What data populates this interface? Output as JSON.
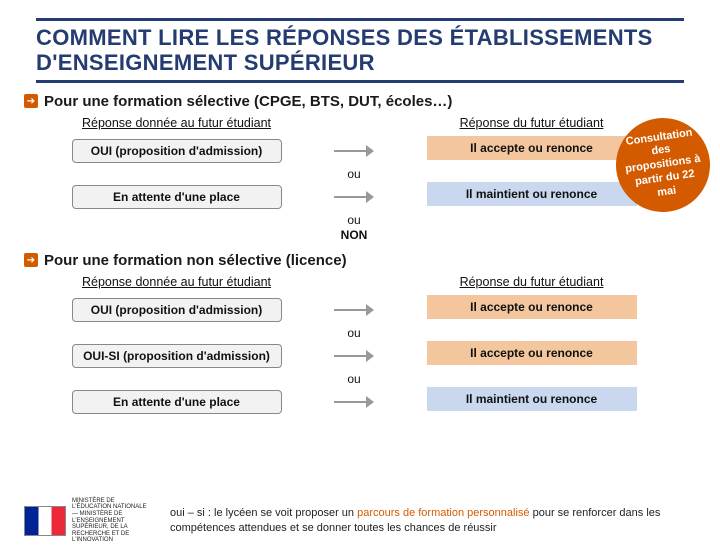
{
  "title": "COMMENT LIRE LES RÉPONSES DES ÉTABLISSEMENTS D'ENSEIGNEMENT SUPÉRIEUR",
  "badge": "Consultation des propositions à partir du 22 mai",
  "sections": [
    {
      "heading": "Pour une formation sélective (CPGE, BTS, DUT, écoles…)",
      "left_header": "Réponse donnée au futur étudiant",
      "right_header": "Réponse du futur étudiant",
      "rows": [
        {
          "left": "OUI (proposition d'admission)",
          "right": "Il accepte ou renonce",
          "right_color": "orange"
        },
        {
          "left": "En attente d'une place",
          "right": "Il maintient ou renonce",
          "right_color": "blue"
        }
      ],
      "connectors": [
        "ou",
        "ou"
      ],
      "tail": "NON"
    },
    {
      "heading": "Pour une formation non sélective (licence)",
      "left_header": "Réponse donnée au futur étudiant",
      "right_header": "Réponse du futur étudiant",
      "rows": [
        {
          "left": "OUI (proposition d'admission)",
          "right": "Il accepte ou renonce",
          "right_color": "orange"
        },
        {
          "left": "OUI-SI (proposition d'admission)",
          "right": "Il accepte ou renonce",
          "right_color": "orange"
        },
        {
          "left": "En attente d'une place",
          "right": "Il maintient ou renonce",
          "right_color": "blue"
        }
      ],
      "connectors": [
        "ou",
        "ou"
      ]
    }
  ],
  "ministry": "MINISTÈRE DE L'ÉDUCATION NATIONALE — MINISTÈRE DE L'ENSEIGNEMENT SUPÉRIEUR, DE LA RECHERCHE ET DE L'INNOVATION",
  "footnote_pre": "oui – si : le lycéen se voit proposer un ",
  "footnote_hl": "parcours de formation personnalisé",
  "footnote_post": " pour se renforcer dans les compétences attendues et se donner toutes les chances de réussir",
  "colors": {
    "brand": "#243c71",
    "accent": "#d45a00",
    "orange_box": "#f3c69d",
    "blue_box": "#c9d8ef",
    "pill_bg": "#f2f2f2"
  }
}
